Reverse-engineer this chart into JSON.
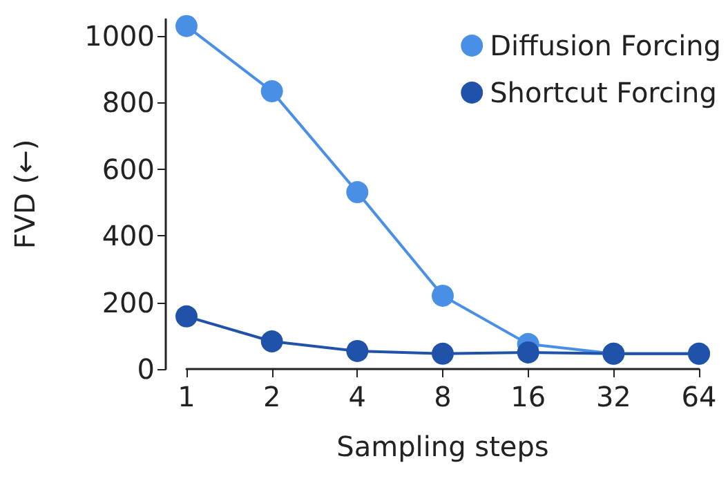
{
  "chart_data": {
    "type": "line",
    "xlabel": "Sampling steps",
    "ylabel": "FVD (←)",
    "categories": [
      "1",
      "2",
      "4",
      "8",
      "16",
      "32",
      "64"
    ],
    "series": [
      {
        "name": "Diffusion Forcing",
        "color": "#4a8fe6",
        "values": [
          1030,
          834,
          531,
          220,
          75,
          46,
          46
        ]
      },
      {
        "name": "Shortcut Forcing",
        "color": "#1f52a8",
        "values": [
          158,
          83,
          54,
          46,
          50,
          46,
          46
        ]
      }
    ],
    "ylim": [
      0,
      1050
    ],
    "yticks": [
      0,
      200,
      400,
      600,
      800,
      1000
    ],
    "grid": false,
    "legend": "top right",
    "marker": "circle",
    "line_style": "solid"
  }
}
